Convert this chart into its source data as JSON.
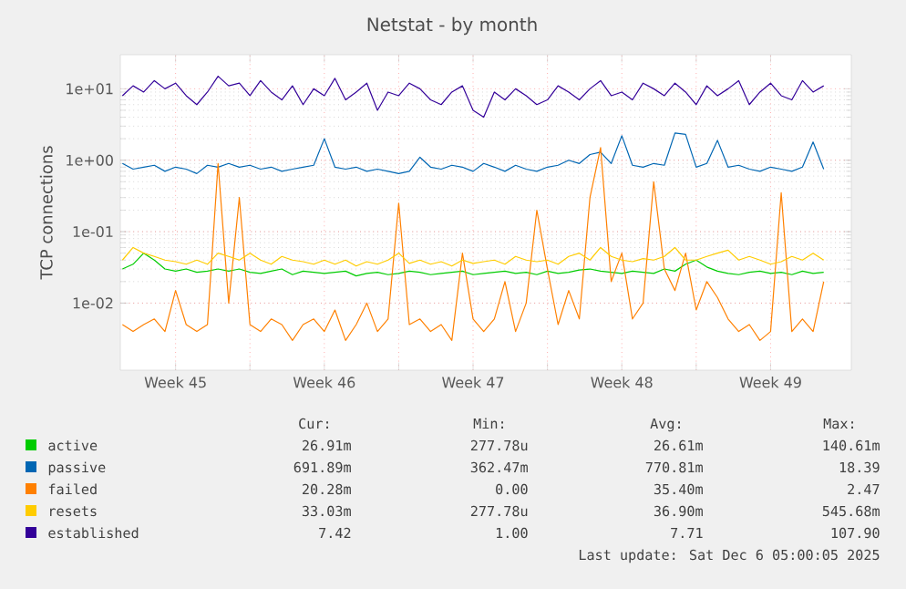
{
  "chart_data": {
    "type": "line",
    "title": "Netstat - by month",
    "ylabel": "TCP connections",
    "log": true,
    "grid": true,
    "legend": "bottom",
    "xlim": [
      "2025-11-03T21:36",
      "2025-12-08T07:12"
    ],
    "ylim": [
      0.00115,
      30
    ],
    "xticks": [
      {
        "value": "2025-11-06T12:00",
        "label": "Week 45"
      },
      {
        "value": "2025-11-10",
        "label": null
      },
      {
        "value": "2025-11-13T12:00",
        "label": "Week 46"
      },
      {
        "value": "2025-11-17",
        "label": null
      },
      {
        "value": "2025-11-20T12:00",
        "label": "Week 47"
      },
      {
        "value": "2025-11-24",
        "label": null
      },
      {
        "value": "2025-11-27T12:00",
        "label": "Week 48"
      },
      {
        "value": "2025-12-01",
        "label": null
      },
      {
        "value": "2025-12-04T12:00",
        "label": "Week 49"
      }
    ],
    "yticks": [
      {
        "value": 0.01,
        "label": "1e-02"
      },
      {
        "value": 0.1,
        "label": "1e-01"
      },
      {
        "value": 1,
        "label": "1e+00"
      },
      {
        "value": 10,
        "label": "1e+01"
      }
    ],
    "x": [
      "2025-11-04T00:00",
      "2025-11-04T12:00",
      "2025-11-05T00:00",
      "2025-11-05T12:00",
      "2025-11-06T00:00",
      "2025-11-06T12:00",
      "2025-11-07T00:00",
      "2025-11-07T12:00",
      "2025-11-08T00:00",
      "2025-11-08T12:00",
      "2025-11-09T00:00",
      "2025-11-09T12:00",
      "2025-11-10T00:00",
      "2025-11-10T12:00",
      "2025-11-11T00:00",
      "2025-11-11T12:00",
      "2025-11-12T00:00",
      "2025-11-12T12:00",
      "2025-11-13T00:00",
      "2025-11-13T12:00",
      "2025-11-14T00:00",
      "2025-11-14T12:00",
      "2025-11-15T00:00",
      "2025-11-15T12:00",
      "2025-11-16T00:00",
      "2025-11-16T12:00",
      "2025-11-17T00:00",
      "2025-11-17T12:00",
      "2025-11-18T00:00",
      "2025-11-18T12:00",
      "2025-11-19T00:00",
      "2025-11-19T12:00",
      "2025-11-20T00:00",
      "2025-11-20T12:00",
      "2025-11-21T00:00",
      "2025-11-21T12:00",
      "2025-11-22T00:00",
      "2025-11-22T12:00",
      "2025-11-23T00:00",
      "2025-11-23T12:00",
      "2025-11-24T00:00",
      "2025-11-24T12:00",
      "2025-11-25T00:00",
      "2025-11-25T12:00",
      "2025-11-26T00:00",
      "2025-11-26T12:00",
      "2025-11-27T00:00",
      "2025-11-27T12:00",
      "2025-11-28T00:00",
      "2025-11-28T12:00",
      "2025-11-29T00:00",
      "2025-11-29T12:00",
      "2025-11-30T00:00",
      "2025-11-30T12:00",
      "2025-12-01T00:00",
      "2025-12-01T12:00",
      "2025-12-02T00:00",
      "2025-12-02T12:00",
      "2025-12-03T00:00",
      "2025-12-03T12:00",
      "2025-12-04T00:00",
      "2025-12-04T12:00",
      "2025-12-05T00:00",
      "2025-12-05T12:00",
      "2025-12-06T00:00",
      "2025-12-06T12:00",
      "2025-12-07T00:00"
    ],
    "series": [
      {
        "name": "active",
        "color": "#00cc00",
        "values": [
          0.03,
          0.035,
          0.05,
          0.04,
          0.03,
          0.028,
          0.03,
          0.027,
          0.028,
          0.03,
          0.028,
          0.03,
          0.027,
          0.026,
          0.028,
          0.03,
          0.025,
          0.028,
          0.027,
          0.026,
          0.027,
          0.028,
          0.024,
          0.026,
          0.027,
          0.025,
          0.026,
          0.028,
          0.027,
          0.025,
          0.026,
          0.027,
          0.028,
          0.025,
          0.026,
          0.027,
          0.028,
          0.026,
          0.027,
          0.025,
          0.028,
          0.026,
          0.027,
          0.029,
          0.03,
          0.028,
          0.027,
          0.026,
          0.028,
          0.027,
          0.026,
          0.03,
          0.028,
          0.035,
          0.04,
          0.032,
          0.028,
          0.026,
          0.025,
          0.027,
          0.028,
          0.026,
          0.027,
          0.025,
          0.028,
          0.026,
          0.027
        ]
      },
      {
        "name": "passive",
        "color": "#0066b3",
        "values": [
          0.9,
          0.75,
          0.8,
          0.85,
          0.7,
          0.8,
          0.75,
          0.65,
          0.85,
          0.8,
          0.9,
          0.8,
          0.85,
          0.75,
          0.8,
          0.7,
          0.75,
          0.8,
          0.85,
          2.0,
          0.8,
          0.75,
          0.8,
          0.7,
          0.75,
          0.7,
          0.65,
          0.7,
          1.1,
          0.8,
          0.75,
          0.85,
          0.8,
          0.7,
          0.9,
          0.8,
          0.7,
          0.85,
          0.75,
          0.7,
          0.8,
          0.85,
          1.0,
          0.9,
          1.2,
          1.3,
          0.9,
          2.2,
          0.85,
          0.8,
          0.9,
          0.85,
          2.4,
          2.3,
          0.8,
          0.9,
          1.9,
          0.8,
          0.85,
          0.75,
          0.7,
          0.8,
          0.75,
          0.7,
          0.8,
          1.8,
          0.75
        ]
      },
      {
        "name": "failed",
        "color": "#ff8000",
        "values": [
          0.005,
          0.004,
          0.005,
          0.006,
          0.004,
          0.015,
          0.005,
          0.004,
          0.005,
          0.9,
          0.01,
          0.3,
          0.005,
          0.004,
          0.006,
          0.005,
          0.003,
          0.005,
          0.006,
          0.004,
          0.008,
          0.003,
          0.005,
          0.01,
          0.004,
          0.006,
          0.25,
          0.005,
          0.006,
          0.004,
          0.005,
          0.003,
          0.05,
          0.006,
          0.004,
          0.006,
          0.02,
          0.004,
          0.01,
          0.2,
          0.03,
          0.005,
          0.015,
          0.006,
          0.3,
          1.5,
          0.02,
          0.05,
          0.006,
          0.01,
          0.5,
          0.03,
          0.015,
          0.05,
          0.008,
          0.02,
          0.012,
          0.006,
          0.004,
          0.005,
          0.003,
          0.004,
          0.35,
          0.004,
          0.006,
          0.004,
          0.02
        ]
      },
      {
        "name": "resets",
        "color": "#ffcc00",
        "values": [
          0.04,
          0.06,
          0.05,
          0.045,
          0.04,
          0.038,
          0.035,
          0.04,
          0.035,
          0.05,
          0.045,
          0.04,
          0.05,
          0.04,
          0.035,
          0.045,
          0.04,
          0.038,
          0.035,
          0.04,
          0.035,
          0.04,
          0.033,
          0.038,
          0.035,
          0.04,
          0.05,
          0.036,
          0.04,
          0.035,
          0.038,
          0.033,
          0.04,
          0.036,
          0.038,
          0.04,
          0.035,
          0.045,
          0.04,
          0.038,
          0.04,
          0.035,
          0.045,
          0.05,
          0.04,
          0.06,
          0.045,
          0.04,
          0.038,
          0.042,
          0.04,
          0.045,
          0.06,
          0.04,
          0.04,
          0.045,
          0.05,
          0.055,
          0.04,
          0.045,
          0.04,
          0.035,
          0.038,
          0.045,
          0.04,
          0.05,
          0.04
        ]
      },
      {
        "name": "established",
        "color": "#330099",
        "values": [
          8,
          11,
          9,
          13,
          10,
          12,
          8,
          6,
          9,
          15,
          11,
          12,
          8,
          13,
          9,
          7,
          11,
          6,
          10,
          8,
          14,
          7,
          9,
          12,
          5,
          9,
          8,
          12,
          10,
          7,
          6,
          9,
          11,
          5,
          4,
          9,
          7,
          10,
          8,
          6,
          7,
          11,
          9,
          7,
          10,
          13,
          8,
          9,
          7,
          12,
          10,
          8,
          12,
          9,
          6,
          11,
          8,
          10,
          13,
          6,
          9,
          12,
          8,
          7,
          13,
          9,
          11
        ]
      }
    ],
    "annotations": [
      "Cur:",
      "Min:",
      "Avg:",
      "Max:",
      "26.91m",
      "277.78u",
      "26.61m",
      "140.61m",
      "691.89m",
      "362.47m",
      "770.81m",
      "18.39",
      "20.28m",
      "0.00",
      "35.40m",
      "2.47",
      "33.03m",
      "277.78u",
      "36.90m",
      "545.68m",
      "7.42",
      "1.00",
      "7.71",
      "107.90",
      "Last update: Sat Dec  6 05:00:05 2025"
    ]
  }
}
